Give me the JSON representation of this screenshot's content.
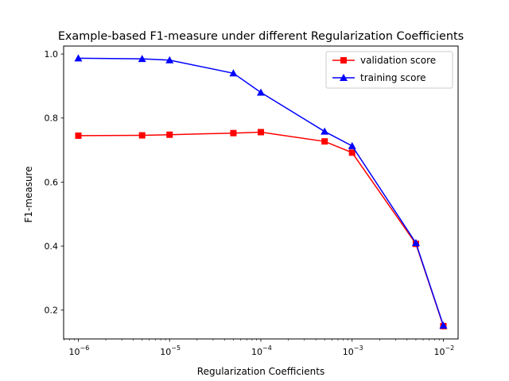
{
  "chart_data": {
    "type": "line",
    "title": "Example-based F1-measure under different Regularization Coefficients",
    "xlabel": "Regularization Coefficients",
    "ylabel": "F1-measure",
    "xscale": "log",
    "xlim": [
      6.9e-07,
      0.0145
    ],
    "ylim": [
      0.11,
      1.025
    ],
    "x": [
      1e-06,
      5e-06,
      1e-05,
      5e-05,
      0.0001,
      0.0005,
      0.001,
      0.005,
      0.01
    ],
    "xticks": [
      {
        "value": 1e-06,
        "label": "10",
        "exp": "−6"
      },
      {
        "value": 1e-05,
        "label": "10",
        "exp": "−5"
      },
      {
        "value": 0.0001,
        "label": "10",
        "exp": "−4"
      },
      {
        "value": 0.001,
        "label": "10",
        "exp": "−3"
      },
      {
        "value": 0.01,
        "label": "10",
        "exp": "−2"
      }
    ],
    "yticks": [
      {
        "value": 0.2,
        "label": "0.2"
      },
      {
        "value": 0.4,
        "label": "0.4"
      },
      {
        "value": 0.6,
        "label": "0.6"
      },
      {
        "value": 0.8,
        "label": "0.8"
      },
      {
        "value": 1.0,
        "label": "1.0"
      }
    ],
    "grid": false,
    "legend_position": "top-right",
    "series": [
      {
        "name": "validation score",
        "color": "#ff0000",
        "marker": "square",
        "values": [
          0.745,
          0.746,
          0.748,
          0.753,
          0.756,
          0.727,
          0.692,
          0.407,
          0.15
        ]
      },
      {
        "name": "training score",
        "color": "#0000ff",
        "marker": "triangle",
        "values": [
          0.987,
          0.985,
          0.981,
          0.94,
          0.88,
          0.758,
          0.713,
          0.41,
          0.152
        ]
      }
    ]
  }
}
